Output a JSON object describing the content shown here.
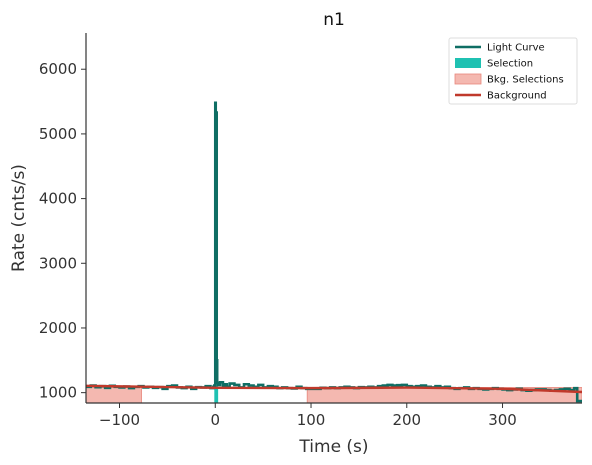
{
  "chart_data": {
    "type": "line",
    "title": "n1",
    "xlabel": "Time (s)",
    "ylabel": "Rate (cnts/s)",
    "xlim": [
      -135,
      383
    ],
    "ylim": [
      840,
      6560
    ],
    "xticks": [
      -100,
      0,
      100,
      200,
      300
    ],
    "xtick_labels": [
      "−100",
      "0",
      "100",
      "200",
      "300"
    ],
    "yticks": [
      1000,
      2000,
      3000,
      4000,
      5000,
      6000
    ],
    "ytick_labels": [
      "1000",
      "2000",
      "3000",
      "4000",
      "5000",
      "6000"
    ],
    "grid": false,
    "legend_placement": "top-right",
    "colors": {
      "light_curve": "#0f6e64",
      "selection": "#1fc1b2",
      "bkg_selection_fill": "#f4b8b0",
      "bkg_selection_edge": "#e8877c",
      "background": "#c0392b",
      "axis": "#333333"
    },
    "legend": [
      {
        "label": "Light Curve",
        "kind": "line",
        "color": "#0f6e64"
      },
      {
        "label": "Selection",
        "kind": "patch",
        "color": "#1fc1b2"
      },
      {
        "label": "Bkg. Selections",
        "kind": "patch",
        "color": "#f4b8b0"
      },
      {
        "label": "Background",
        "kind": "line",
        "color": "#c0392b"
      }
    ],
    "bkg_selections": [
      [
        -135,
        -77
      ],
      [
        96,
        383
      ]
    ],
    "selection": [
      -1,
      3
    ],
    "background_line": {
      "x": [
        -135,
        0,
        100,
        200,
        300,
        383
      ],
      "y": [
        1105,
        1075,
        1070,
        1078,
        1060,
        1010
      ]
    },
    "light_curve": {
      "x": [
        -135,
        -130,
        -125,
        -120,
        -115,
        -110,
        -105,
        -100,
        -95,
        -90,
        -85,
        -80,
        -75,
        -70,
        -65,
        -60,
        -55,
        -50,
        -45,
        -40,
        -35,
        -30,
        -25,
        -20,
        -15,
        -10,
        -5,
        -2,
        -1,
        0,
        0.5,
        1,
        1.5,
        2,
        3,
        5,
        8,
        10,
        12,
        15,
        20,
        25,
        30,
        35,
        40,
        45,
        50,
        55,
        60,
        65,
        70,
        75,
        80,
        85,
        90,
        95,
        100,
        105,
        110,
        115,
        120,
        125,
        130,
        135,
        140,
        145,
        150,
        155,
        160,
        165,
        170,
        175,
        180,
        185,
        190,
        195,
        200,
        205,
        210,
        215,
        220,
        225,
        230,
        235,
        240,
        245,
        250,
        255,
        260,
        265,
        270,
        275,
        280,
        285,
        290,
        295,
        300,
        305,
        310,
        315,
        320,
        325,
        330,
        335,
        340,
        345,
        350,
        355,
        360,
        365,
        370,
        375,
        378,
        383
      ],
      "y": [
        1090,
        1110,
        1085,
        1100,
        1075,
        1105,
        1090,
        1080,
        1095,
        1070,
        1090,
        1100,
        1080,
        1090,
        1075,
        1085,
        1060,
        1100,
        1110,
        1080,
        1070,
        1090,
        1060,
        1085,
        1080,
        1100,
        1070,
        1090,
        1110,
        5480,
        3600,
        5330,
        1500,
        1150,
        1120,
        1160,
        1100,
        1130,
        1090,
        1140,
        1120,
        1080,
        1130,
        1110,
        1090,
        1120,
        1080,
        1100,
        1090,
        1070,
        1080,
        1070,
        1065,
        1090,
        1070,
        1060,
        1060,
        1060,
        1075,
        1070,
        1080,
        1070,
        1080,
        1090,
        1080,
        1070,
        1085,
        1080,
        1090,
        1080,
        1100,
        1110,
        1120,
        1110,
        1115,
        1120,
        1100,
        1090,
        1100,
        1110,
        1090,
        1080,
        1100,
        1080,
        1090,
        1070,
        1060,
        1070,
        1080,
        1060,
        1070,
        1060,
        1050,
        1060,
        1070,
        1060,
        1050,
        1040,
        1050,
        1060,
        1040,
        1030,
        1040,
        1050,
        1050,
        1040,
        1030,
        1040,
        1050,
        1060,
        1040,
        1070,
        870,
        860
      ]
    }
  }
}
